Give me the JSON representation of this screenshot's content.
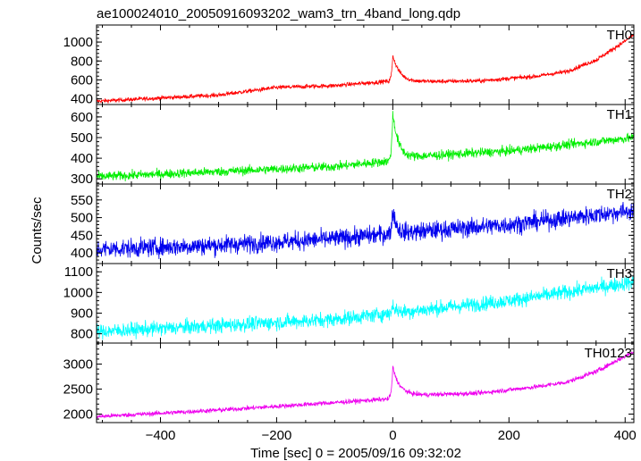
{
  "chart_data": {
    "type": "line",
    "title": "ae100024010_20050916093202_wam3_trn_4band_long.qdp",
    "xlabel": "Time [sec] 0 = 2005/09/16 09:32:02",
    "ylabel": "Counts/sec",
    "xlim": [
      -510,
      415
    ],
    "xticks": [
      -400,
      -200,
      0,
      200,
      400
    ],
    "xtick_labels": [
      "−400",
      "−200",
      "0",
      "200",
      "400"
    ],
    "grid": false,
    "panels": [
      {
        "name": "TH0",
        "color": "#ff0000",
        "ylim": [
          340,
          1180
        ],
        "yticks": [
          400,
          600,
          800,
          1000
        ],
        "baseline": [
          [
            -510,
            375
          ],
          [
            -300,
            440
          ],
          [
            -200,
            520
          ],
          [
            -100,
            540
          ],
          [
            -10,
            585
          ],
          [
            20,
            580
          ],
          [
            150,
            590
          ],
          [
            250,
            640
          ],
          [
            300,
            690
          ],
          [
            350,
            810
          ],
          [
            400,
            1010
          ],
          [
            415,
            1080
          ]
        ],
        "noise": 22,
        "flare": {
          "peak_x": 0,
          "height": 280,
          "rise": 2,
          "decay": 12
        }
      },
      {
        "name": "TH1",
        "color": "#00ee00",
        "ylim": [
          275,
          660
        ],
        "yticks": [
          300,
          400,
          500,
          600
        ],
        "baseline": [
          [
            -510,
            310
          ],
          [
            -300,
            335
          ],
          [
            -100,
            360
          ],
          [
            -10,
            385
          ],
          [
            50,
            410
          ],
          [
            200,
            435
          ],
          [
            300,
            465
          ],
          [
            415,
            500
          ]
        ],
        "noise": 22,
        "flare": {
          "peak_x": 0,
          "height": 230,
          "rise": 2,
          "decay": 10
        }
      },
      {
        "name": "TH2",
        "color": "#0000ee",
        "ylim": [
          370,
          595
        ],
        "yticks": [
          400,
          450,
          500,
          550
        ],
        "baseline": [
          [
            -510,
            410
          ],
          [
            -300,
            422
          ],
          [
            -100,
            440
          ],
          [
            0,
            455
          ],
          [
            200,
            480
          ],
          [
            415,
            520
          ]
        ],
        "noise": 26,
        "flare": {
          "peak_x": 0,
          "height": 70,
          "rise": 2,
          "decay": 6
        }
      },
      {
        "name": "TH3",
        "color": "#00ffff",
        "ylim": [
          755,
          1140
        ],
        "yticks": [
          800,
          900,
          1000,
          1100
        ],
        "baseline": [
          [
            -510,
            810
          ],
          [
            -300,
            840
          ],
          [
            -100,
            870
          ],
          [
            0,
            900
          ],
          [
            200,
            960
          ],
          [
            415,
            1050
          ]
        ],
        "noise": 35,
        "flare": {
          "peak_x": 0,
          "height": 40,
          "rise": 2,
          "decay": 6
        }
      },
      {
        "name": "TH0123",
        "color": "#ee00ee",
        "ylim": [
          1830,
          3420
        ],
        "yticks": [
          2000,
          2500,
          3000
        ],
        "baseline": [
          [
            -510,
            1950
          ],
          [
            -300,
            2080
          ],
          [
            -100,
            2230
          ],
          [
            -10,
            2300
          ],
          [
            20,
            2370
          ],
          [
            150,
            2420
          ],
          [
            250,
            2550
          ],
          [
            300,
            2640
          ],
          [
            350,
            2850
          ],
          [
            415,
            3250
          ]
        ],
        "noise": 45,
        "flare": {
          "peak_x": 0,
          "height": 620,
          "rise": 2,
          "decay": 12
        }
      }
    ]
  }
}
